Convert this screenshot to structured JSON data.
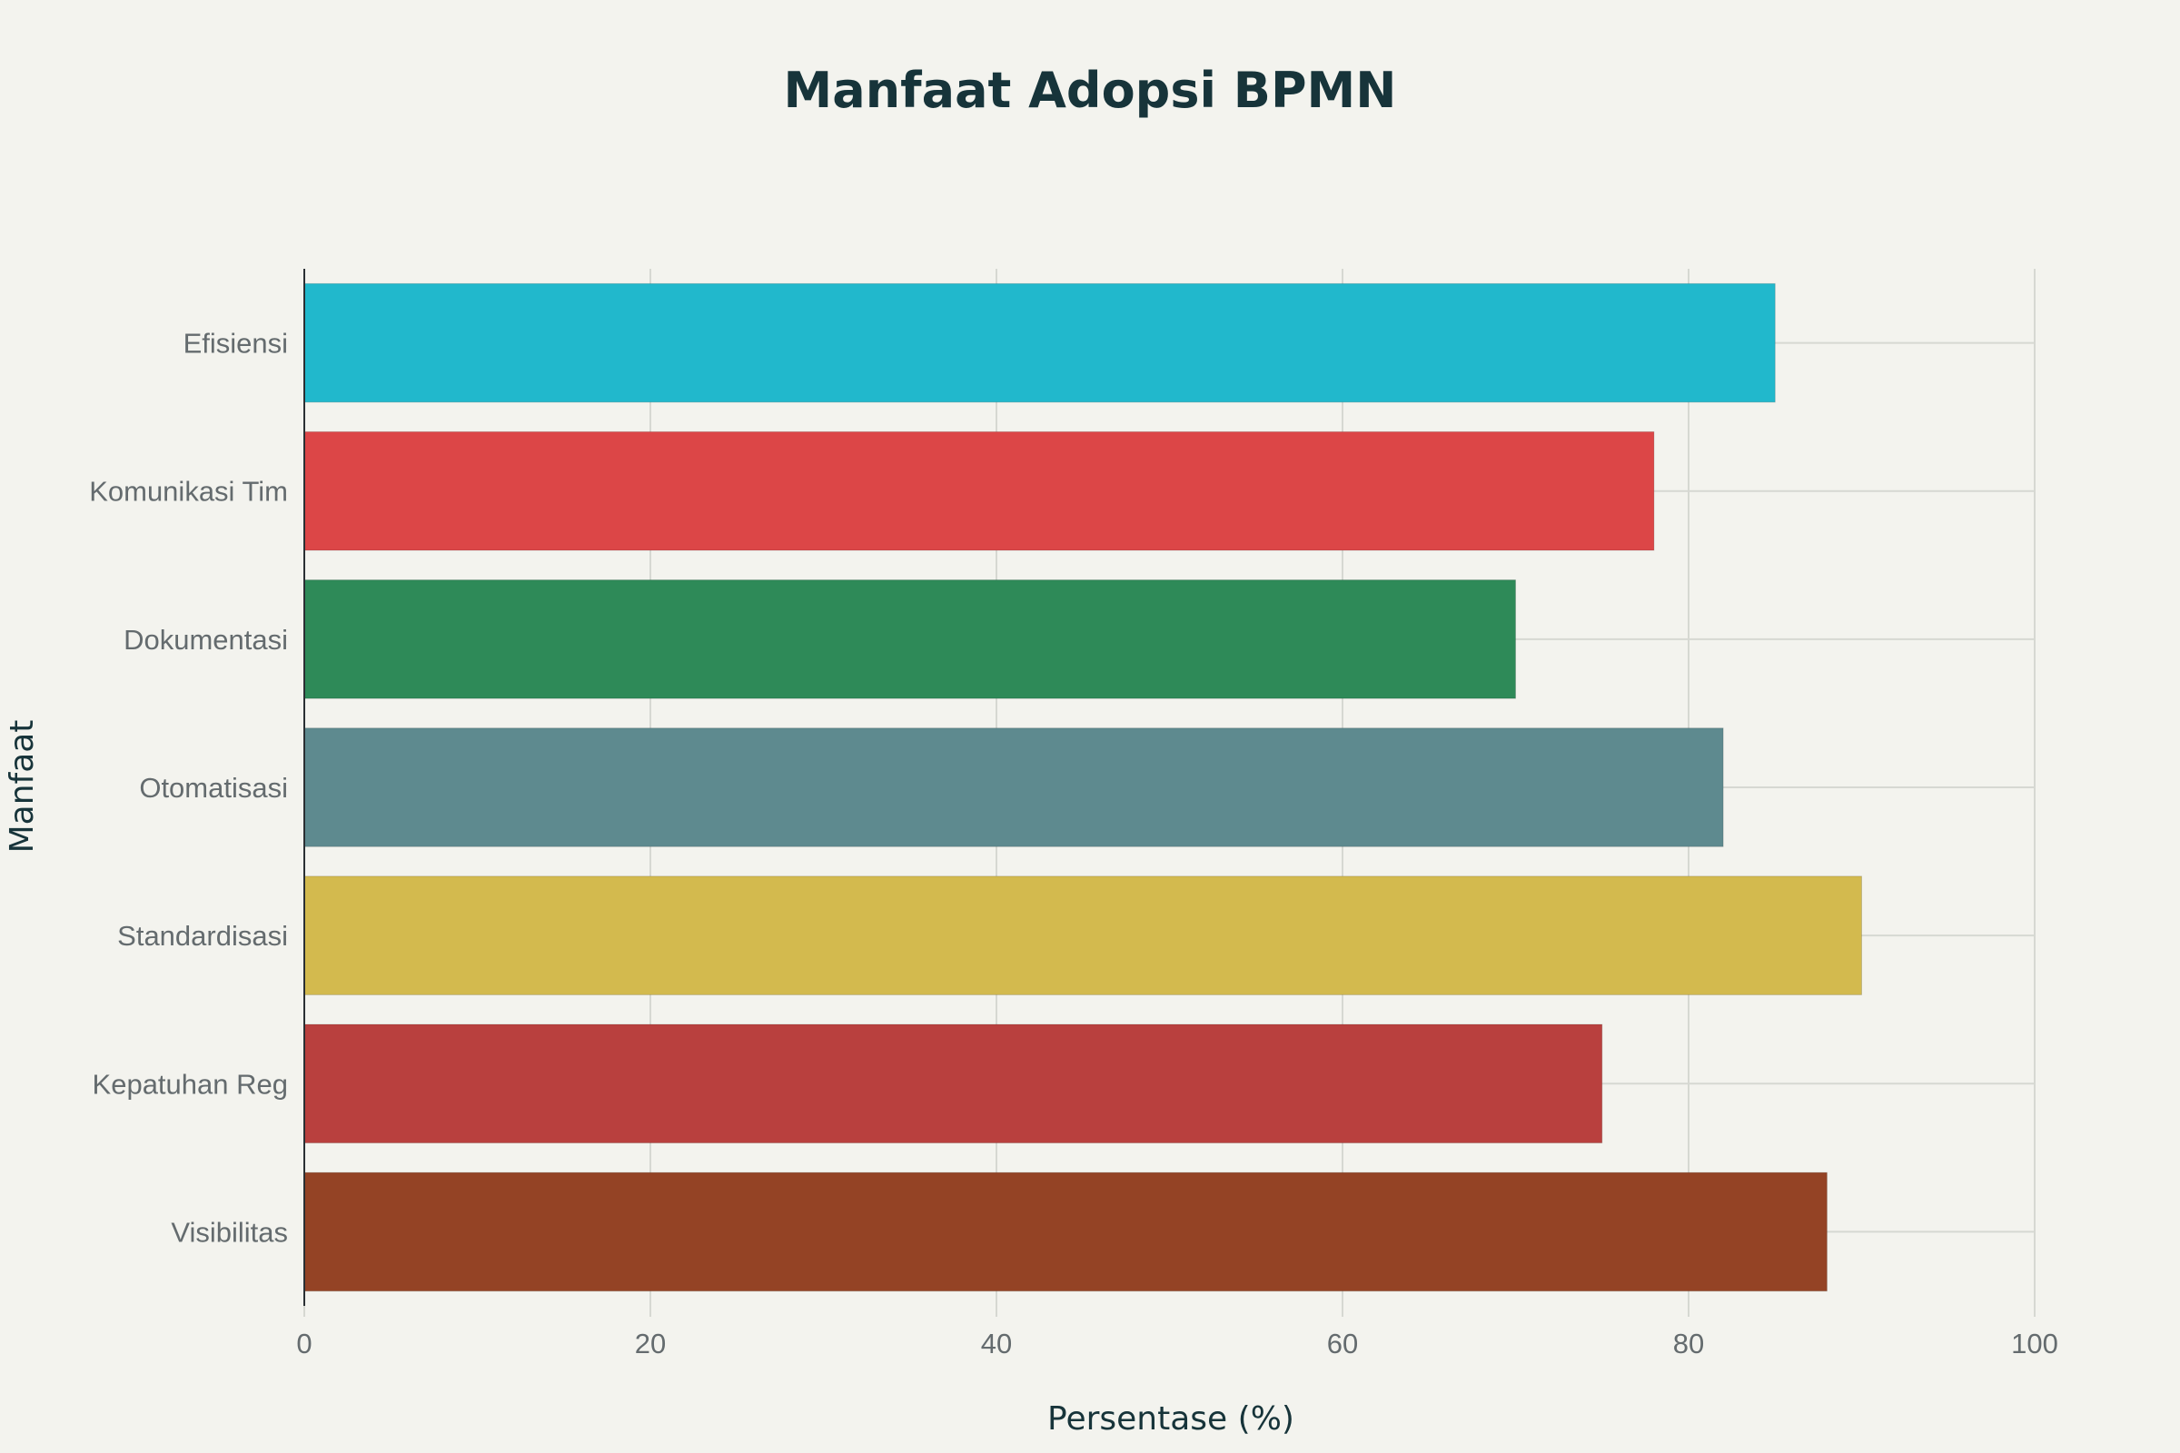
{
  "chart_data": {
    "type": "bar",
    "orientation": "horizontal",
    "title": "Manfaat Adopsi BPMN",
    "xlabel": "Persentase (%)",
    "ylabel": "Manfaat",
    "xlim": [
      0,
      100
    ],
    "x_ticks": [
      0,
      20,
      40,
      60,
      80,
      100
    ],
    "grid": true,
    "categories": [
      "Efisiensi",
      "Komunikasi Tim",
      "Dokumentasi",
      "Otomatisasi",
      "Standardisasi",
      "Kepatuhan Reg",
      "Visibilitas"
    ],
    "values": [
      85,
      78,
      70,
      82,
      90,
      75,
      88
    ],
    "colors": [
      "#21b8cc",
      "#dc4647",
      "#2e8a58",
      "#5e8a8f",
      "#d3ba4e",
      "#b9403e",
      "#944325"
    ]
  },
  "background_color": "#f3f3ee",
  "text_color": "#17343a"
}
